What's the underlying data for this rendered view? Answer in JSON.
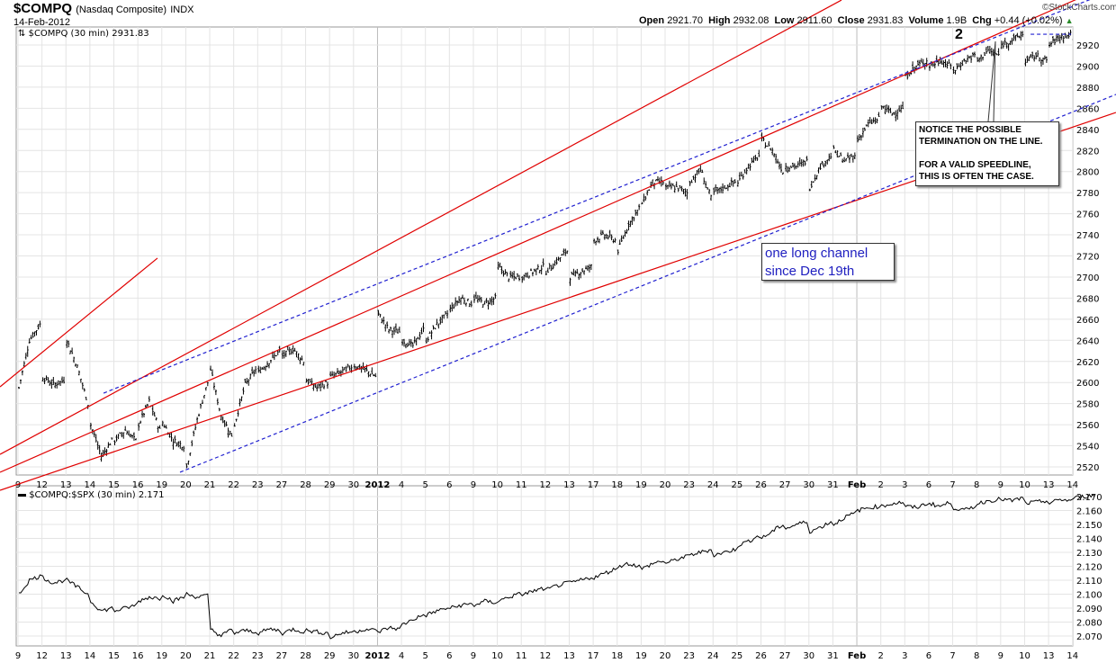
{
  "header": {
    "symbol": "$COMPQ",
    "name": "(Nasdaq Composite)",
    "type": "INDX",
    "date": "14-Feb-2012",
    "copyright": "©StockCharts.com",
    "open_label": "Open",
    "open": "2921.70",
    "high_label": "High",
    "high": "2932.08",
    "low_label": "Low",
    "low": "2911.60",
    "close_label": "Close",
    "close": "2931.83",
    "volume_label": "Volume",
    "volume": "1.9B",
    "chg_label": "Chg",
    "chg": "+0.44 (+0.02%)",
    "up_color": "#2a8a2a"
  },
  "chart_data": [
    {
      "type": "bar",
      "title": "$COMPQ (30 min) 2931.83",
      "legend_icon": "ohlc-bars-icon",
      "x_labels": [
        "9",
        "12",
        "13",
        "14",
        "15",
        "16",
        "19",
        "20",
        "21",
        "22",
        "23",
        "27",
        "28",
        "29",
        "30",
        "2012",
        "4",
        "5",
        "6",
        "9",
        "10",
        "11",
        "12",
        "13",
        "17",
        "18",
        "19",
        "20",
        "23",
        "24",
        "25",
        "26",
        "27",
        "30",
        "31",
        "Feb",
        "2",
        "3",
        "6",
        "7",
        "8",
        "9",
        "10",
        "13",
        "14"
      ],
      "bold_labels": [
        "2012",
        "Feb"
      ],
      "ylim": [
        2510,
        2945
      ],
      "y_ticks": [
        2520,
        2540,
        2560,
        2580,
        2600,
        2620,
        2640,
        2660,
        2680,
        2700,
        2720,
        2740,
        2760,
        2780,
        2800,
        2820,
        2840,
        2860,
        2880,
        2900,
        2920
      ],
      "daily_path": [
        [
          2595,
          2640,
          2655
        ],
        [
          2605,
          2598,
          2602
        ],
        [
          2640,
          2615,
          2580
        ],
        [
          2560,
          2530,
          2545
        ],
        [
          2545,
          2555,
          2545
        ],
        [
          2560,
          2582,
          2555
        ],
        [
          2562,
          2545,
          2540
        ],
        [
          2520,
          2565,
          2600
        ],
        [
          2612,
          2568,
          2550
        ],
        [
          2560,
          2598,
          2612
        ],
        [
          2610,
          2620,
          2630
        ],
        [
          2625,
          2632,
          2620
        ],
        [
          2602,
          2595,
          2600
        ],
        [
          2605,
          2610,
          2615
        ],
        [
          2616,
          2612,
          2606
        ],
        [
          2665,
          2650,
          2648
        ],
        [
          2640,
          2635,
          2650
        ],
        [
          2640,
          2655,
          2665
        ],
        [
          2670,
          2680,
          2675
        ],
        [
          2680,
          2675,
          2680
        ],
        [
          2710,
          2700,
          2700
        ],
        [
          2700,
          2705,
          2710
        ],
        [
          2705,
          2715,
          2725
        ],
        [
          2700,
          2705,
          2710
        ],
        [
          2735,
          2740,
          2735
        ],
        [
          2725,
          2750,
          2765
        ],
        [
          2770,
          2790,
          2790
        ],
        [
          2785,
          2785,
          2780
        ],
        [
          2790,
          2802,
          2775
        ],
        [
          2780,
          2785,
          2790
        ],
        [
          2790,
          2805,
          2815
        ],
        [
          2830,
          2820,
          2800
        ],
        [
          2805,
          2805,
          2810
        ],
        [
          2785,
          2805,
          2815
        ],
        [
          2820,
          2810,
          2815
        ],
        [
          2830,
          2845,
          2850
        ],
        [
          2862,
          2855,
          2860
        ],
        [
          2890,
          2900,
          2905
        ],
        [
          2900,
          2905,
          2900
        ],
        [
          2895,
          2905,
          2910
        ],
        [
          2905,
          2915,
          2910
        ],
        [
          2920,
          2925,
          2930
        ],
        [
          2905,
          2910,
          2905
        ],
        [
          2920,
          2928,
          2930
        ],
        [
          2925,
          2918,
          2931.83
        ]
      ],
      "trendlines": [
        {
          "color": "#e00000",
          "style": "solid",
          "from": [
            -0.75,
            2531.9
          ],
          "to": [
            34.36,
            2962.6
          ]
        },
        {
          "color": "#e00000",
          "style": "solid",
          "from": [
            -0.75,
            2514.9
          ],
          "to": [
            45.81,
            2979.7
          ]
        },
        {
          "color": "#e00000",
          "style": "solid",
          "from": [
            -0.75,
            2497.8
          ],
          "to": [
            45.81,
            2856.0
          ]
        },
        {
          "color": "#e00000",
          "style": "solid",
          "from": [
            -0.75,
            2595.9
          ],
          "to": [
            5.82,
            2717.9
          ]
        },
        {
          "color": "#2020d0",
          "style": "dashed",
          "from": [
            3.57,
            2589.9
          ],
          "to": [
            45.81,
            2972.9
          ]
        },
        {
          "color": "#2020d0",
          "style": "dashed",
          "from": [
            6.76,
            2514.9
          ],
          "to": [
            45.81,
            2873.1
          ]
        },
        {
          "color": "#2020d0",
          "style": "dashed",
          "from": [
            42.25,
            2930.2
          ],
          "to": [
            43.94,
            2930.2
          ]
        }
      ],
      "annotations": {
        "wave_label": "2",
        "channel_note": [
          "one long channel",
          "since Dec 19th"
        ],
        "callout": [
          "NOTICE THE POSSIBLE",
          "TERMINATION ON THE LINE.",
          "",
          "FOR A VALID SPEEDLINE,",
          "THIS IS OFTEN THE CASE."
        ]
      }
    },
    {
      "type": "line",
      "title": "$COMPQ:$SPX (30 min) 2.171",
      "legend_icon": "line-icon",
      "ylim": [
        2.064,
        2.176
      ],
      "y_ticks": [
        "2.070",
        "2.080",
        "2.090",
        "2.100",
        "2.110",
        "2.120",
        "2.130",
        "2.140",
        "2.150",
        "2.160",
        "2.170"
      ],
      "daily_path": [
        [
          2.1,
          2.11,
          2.113
        ],
        [
          2.112,
          2.108,
          2.11
        ],
        [
          2.11,
          2.105,
          2.1
        ],
        [
          2.095,
          2.088,
          2.09
        ],
        [
          2.088,
          2.09,
          2.092
        ],
        [
          2.095,
          2.098,
          2.097
        ],
        [
          2.1,
          2.095,
          2.098
        ],
        [
          2.1,
          2.098,
          2.099
        ],
        [
          2.075,
          2.07,
          2.075
        ],
        [
          2.072,
          2.074,
          2.073
        ],
        [
          2.072,
          2.075,
          2.074
        ],
        [
          2.072,
          2.075,
          2.073
        ],
        [
          2.074,
          2.073,
          2.072
        ],
        [
          2.069,
          2.072,
          2.073
        ],
        [
          2.073,
          2.075,
          2.074
        ],
        [
          2.073,
          2.076,
          2.075
        ],
        [
          2.078,
          2.082,
          2.085
        ],
        [
          2.085,
          2.088,
          2.09
        ],
        [
          2.09,
          2.092,
          2.093
        ],
        [
          2.092,
          2.095,
          2.094
        ],
        [
          2.095,
          2.098,
          2.1
        ],
        [
          2.1,
          2.102,
          2.104
        ],
        [
          2.103,
          2.106,
          2.108
        ],
        [
          2.108,
          2.11,
          2.112
        ],
        [
          2.112,
          2.115,
          2.118
        ],
        [
          2.12,
          2.122,
          2.12
        ],
        [
          2.118,
          2.122,
          2.124
        ],
        [
          2.122,
          2.125,
          2.127
        ],
        [
          2.128,
          2.13,
          2.132
        ],
        [
          2.128,
          2.13,
          2.132
        ],
        [
          2.135,
          2.138,
          2.142
        ],
        [
          2.14,
          2.145,
          2.15
        ],
        [
          2.147,
          2.15,
          2.152
        ],
        [
          2.145,
          2.148,
          2.152
        ],
        [
          2.15,
          2.155,
          2.158
        ],
        [
          2.16,
          2.162,
          2.163
        ],
        [
          2.163,
          2.165,
          2.166
        ],
        [
          2.163,
          2.162,
          2.165
        ],
        [
          2.165,
          2.163,
          2.166
        ],
        [
          2.162,
          2.16,
          2.163
        ],
        [
          2.165,
          2.167,
          2.168
        ],
        [
          2.168,
          2.167,
          2.169
        ],
        [
          2.165,
          2.166,
          2.167
        ],
        [
          2.165,
          2.168,
          2.167
        ],
        [
          2.169,
          2.17,
          2.171
        ]
      ]
    }
  ]
}
